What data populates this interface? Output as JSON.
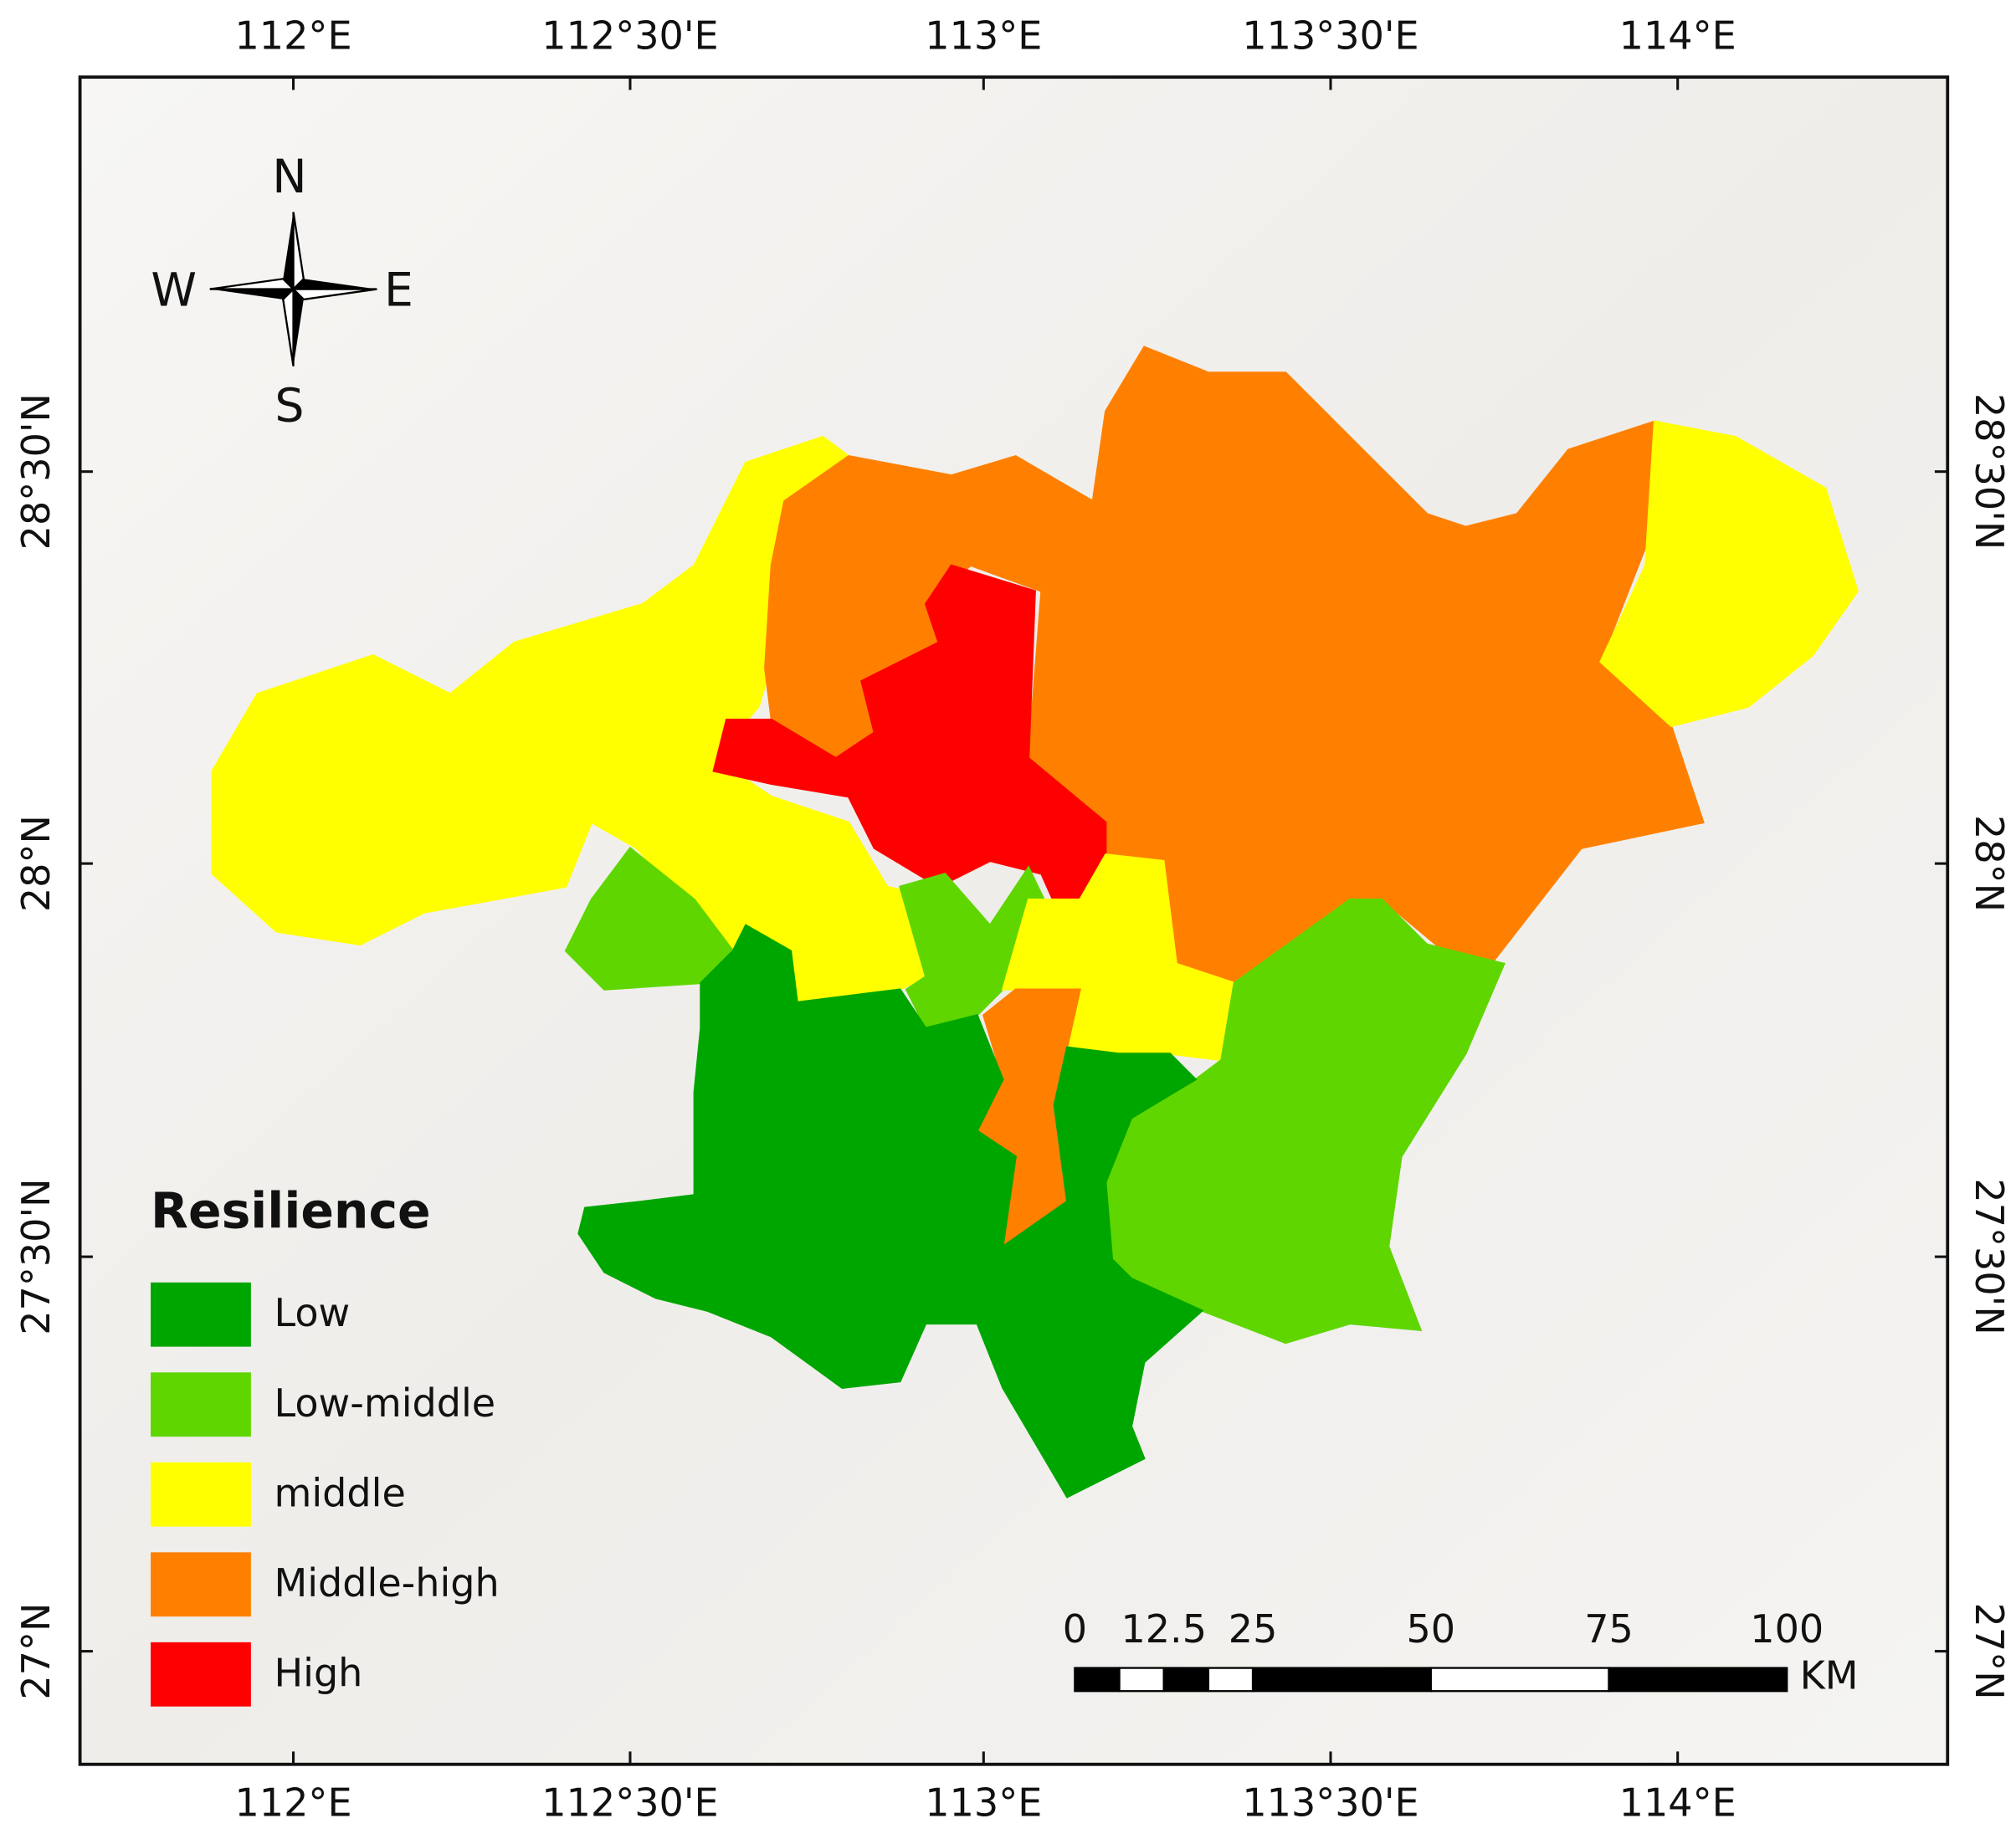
{
  "axes": {
    "top": [
      "112°E",
      "112°30'E",
      "113°E",
      "113°30'E",
      "114°E"
    ],
    "bottom": [
      "112°E",
      "112°30'E",
      "113°E",
      "113°30'E",
      "114°E"
    ],
    "left": [
      "28°30'N",
      "28°N",
      "27°30'N",
      "27°N"
    ],
    "right": [
      "28°30'N",
      "28°N",
      "27°30'N",
      "27°N"
    ]
  },
  "compass": {
    "north": "N",
    "south": "S",
    "west": "W",
    "east": "E"
  },
  "legend": {
    "title": "Resilience",
    "items": [
      {
        "label": "Low",
        "color": "#00a600"
      },
      {
        "label": "Low-middle",
        "color": "#5fd600"
      },
      {
        "label": "middle",
        "color": "#ffff00"
      },
      {
        "label": "Middle-high",
        "color": "#ff8000"
      },
      {
        "label": "High",
        "color": "#ff0000"
      }
    ]
  },
  "scale_bar": {
    "ticks": [
      0,
      12.5,
      25,
      50,
      75,
      100
    ],
    "unit": "KM"
  }
}
